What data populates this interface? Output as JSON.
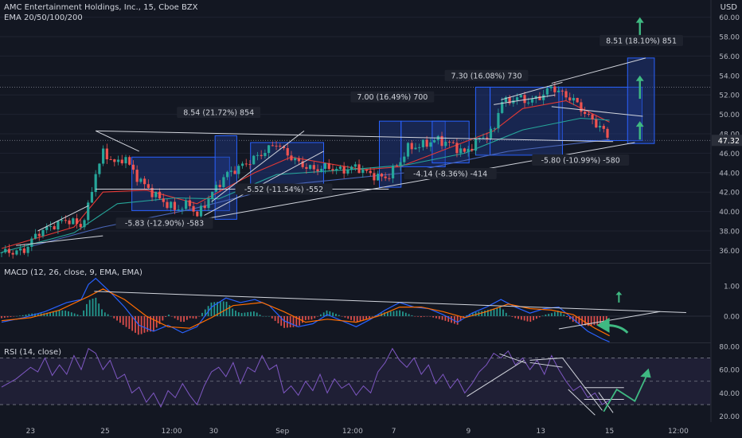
{
  "header": {
    "title": "AMC Entertainment Holdings, Inc., 15, Cboe BZX",
    "ema": "EMA 20/50/100/200",
    "macd": "MACD (12, 26, close, 9, EMA, EMA)",
    "rsi": "RSI (14, close)",
    "currency": "USD"
  },
  "colors": {
    "background": "#131722",
    "up": "#26a69a",
    "down": "#ef5350",
    "box_fill": "#1e3a8a",
    "box_edge": "#2962ff",
    "arrow": "#3fb982",
    "rsi_line": "#7e57c2",
    "macd_line": "#2962ff",
    "signal_line": "#ff6d00"
  },
  "chart_data": [
    {
      "type": "line",
      "name": "price",
      "x_ticks": [
        "23",
        "25",
        "12:00",
        "30",
        "Sep",
        "12:00",
        "7",
        "9",
        "13",
        "15",
        "12:00"
      ],
      "y_ticks": [
        "60.00",
        "58.00",
        "56.00",
        "54.00",
        "52.00",
        "50.00",
        "48.00",
        "46.00",
        "44.00",
        "42.00",
        "40.00",
        "38.00",
        "36.00"
      ],
      "ylim": [
        35,
        61
      ],
      "xlim": [
        0,
        100
      ],
      "price_path": [
        [
          0,
          35.8
        ],
        [
          3,
          35.9
        ],
        [
          5,
          37.8
        ],
        [
          7,
          38.5
        ],
        [
          9,
          39.2
        ],
        [
          11,
          38.5
        ],
        [
          12,
          40.5
        ],
        [
          13,
          44.0
        ],
        [
          14,
          46.0
        ],
        [
          15,
          45.5
        ],
        [
          16,
          44.8
        ],
        [
          17,
          45.8
        ],
        [
          18,
          44.2
        ],
        [
          20,
          42.5
        ],
        [
          22,
          41.2
        ],
        [
          24,
          40.2
        ],
        [
          26,
          40.8
        ],
        [
          27,
          39.5
        ],
        [
          29,
          41.8
        ],
        [
          31,
          43.8
        ],
        [
          33,
          44.6
        ],
        [
          35,
          45.5
        ],
        [
          37,
          46.5
        ],
        [
          38,
          47.1
        ],
        [
          39,
          46.2
        ],
        [
          41,
          45.0
        ],
        [
          43,
          44.3
        ],
        [
          45,
          44.6
        ],
        [
          47,
          44.2
        ],
        [
          49,
          44.6
        ],
        [
          51,
          43.8
        ],
        [
          53,
          43.4
        ],
        [
          55,
          45.0
        ],
        [
          56,
          46.5
        ],
        [
          58,
          46.8
        ],
        [
          60,
          47.4
        ],
        [
          62,
          47.0
        ],
        [
          64,
          46.0
        ],
        [
          66,
          47.5
        ],
        [
          68,
          48.2
        ],
        [
          69,
          51.5
        ],
        [
          70,
          51.2
        ],
        [
          71,
          51.8
        ],
        [
          73,
          51.3
        ],
        [
          75,
          52.1
        ],
        [
          76,
          52.9
        ],
        [
          77,
          52.3
        ],
        [
          79,
          51.5
        ],
        [
          81,
          49.8
        ],
        [
          83,
          48.5
        ],
        [
          84,
          47.3
        ]
      ],
      "ema_series": [
        {
          "color": "#e53935",
          "values": [
            [
              0,
              36.2
            ],
            [
              10,
              38.4
            ],
            [
              14,
              42.0
            ],
            [
              20,
              42.2
            ],
            [
              27,
              40.8
            ],
            [
              35,
              44.0
            ],
            [
              40,
              45.6
            ],
            [
              50,
              44.3
            ],
            [
              55,
              44.6
            ],
            [
              62,
              46.6
            ],
            [
              68,
              48.3
            ],
            [
              72,
              50.6
            ],
            [
              78,
              51.4
            ],
            [
              84,
              49.2
            ]
          ]
        },
        {
          "color": "#26a69a",
          "values": [
            [
              0,
              35.8
            ],
            [
              10,
              37.8
            ],
            [
              16,
              40.8
            ],
            [
              24,
              41.4
            ],
            [
              30,
              41.3
            ],
            [
              38,
              43.8
            ],
            [
              48,
              44.3
            ],
            [
              56,
              44.8
            ],
            [
              64,
              46.0
            ],
            [
              72,
              48.4
            ],
            [
              80,
              49.6
            ],
            [
              84,
              49.4
            ]
          ]
        },
        {
          "color": "#4a66b8",
          "values": [
            [
              4,
              36.4
            ],
            [
              14,
              38.4
            ],
            [
              26,
              40.2
            ],
            [
              40,
              42.8
            ],
            [
              56,
              44.0
            ],
            [
              70,
              46.2
            ],
            [
              84,
              47.4
            ]
          ]
        }
      ],
      "last_price": "47.32",
      "measure_labels": [
        "8.54 (21.72%) 854",
        "-5.83 (-12.90%) -583",
        "-5.52 (-11.54%) -552",
        "7.00 (16.49%) 700",
        "-4.14 (-8.36%) -414",
        "7.30 (16.08%) 730",
        "-5.80 (-10.99%) -580",
        "8.51 (18.10%) 851"
      ]
    },
    {
      "type": "line",
      "name": "MACD",
      "y_ticks": [
        "1.00",
        "0.00"
      ],
      "ylim": [
        -1.15,
        1.35
      ],
      "macd": [
        [
          0,
          -0.2
        ],
        [
          3,
          -0.05
        ],
        [
          6,
          0.15
        ],
        [
          9,
          0.45
        ],
        [
          11,
          0.55
        ],
        [
          12,
          1.05
        ],
        [
          13,
          1.25
        ],
        [
          15,
          0.8
        ],
        [
          17,
          0.3
        ],
        [
          19,
          -0.3
        ],
        [
          21,
          -0.5
        ],
        [
          23,
          -0.3
        ],
        [
          25,
          -0.55
        ],
        [
          27,
          -0.35
        ],
        [
          29,
          0.3
        ],
        [
          31,
          0.6
        ],
        [
          33,
          0.45
        ],
        [
          35,
          0.55
        ],
        [
          37,
          0.35
        ],
        [
          39,
          -0.15
        ],
        [
          41,
          -0.35
        ],
        [
          43,
          -0.25
        ],
        [
          45,
          0.05
        ],
        [
          47,
          -0.15
        ],
        [
          49,
          -0.35
        ],
        [
          51,
          -0.1
        ],
        [
          53,
          0.2
        ],
        [
          55,
          0.45
        ],
        [
          57,
          0.3
        ],
        [
          59,
          0.25
        ],
        [
          61,
          0.05
        ],
        [
          63,
          -0.2
        ],
        [
          65,
          0.1
        ],
        [
          67,
          0.3
        ],
        [
          69,
          0.55
        ],
        [
          71,
          0.3
        ],
        [
          73,
          0.1
        ],
        [
          75,
          0.25
        ],
        [
          77,
          0.3
        ],
        [
          79,
          -0.1
        ],
        [
          81,
          -0.5
        ],
        [
          83,
          -0.75
        ],
        [
          84,
          -0.85
        ]
      ],
      "signal": [
        [
          0,
          -0.15
        ],
        [
          4,
          -0.05
        ],
        [
          8,
          0.2
        ],
        [
          12,
          0.65
        ],
        [
          14,
          0.9
        ],
        [
          17,
          0.55
        ],
        [
          20,
          0.0
        ],
        [
          23,
          -0.35
        ],
        [
          26,
          -0.4
        ],
        [
          29,
          -0.05
        ],
        [
          32,
          0.35
        ],
        [
          36,
          0.45
        ],
        [
          39,
          0.15
        ],
        [
          42,
          -0.2
        ],
        [
          45,
          -0.1
        ],
        [
          49,
          -0.2
        ],
        [
          52,
          0.0
        ],
        [
          55,
          0.3
        ],
        [
          58,
          0.3
        ],
        [
          61,
          0.15
        ],
        [
          64,
          -0.05
        ],
        [
          67,
          0.15
        ],
        [
          70,
          0.4
        ],
        [
          73,
          0.25
        ],
        [
          76,
          0.2
        ],
        [
          79,
          0.05
        ],
        [
          82,
          -0.4
        ],
        [
          84,
          -0.65
        ]
      ]
    },
    {
      "type": "line",
      "name": "RSI",
      "y_ticks": [
        "80.00",
        "60.00",
        "40.00",
        "20.00"
      ],
      "ylim": [
        15,
        82
      ],
      "rsi": [
        [
          0,
          45
        ],
        [
          2,
          52
        ],
        [
          4,
          62
        ],
        [
          5,
          58
        ],
        [
          6,
          70
        ],
        [
          7,
          55
        ],
        [
          8,
          64
        ],
        [
          9,
          56
        ],
        [
          10,
          72
        ],
        [
          11,
          60
        ],
        [
          12,
          78
        ],
        [
          13,
          74
        ],
        [
          14,
          60
        ],
        [
          15,
          68
        ],
        [
          16,
          52
        ],
        [
          17,
          56
        ],
        [
          18,
          40
        ],
        [
          19,
          45
        ],
        [
          20,
          32
        ],
        [
          21,
          40
        ],
        [
          22,
          28
        ],
        [
          23,
          42
        ],
        [
          24,
          36
        ],
        [
          25,
          48
        ],
        [
          26,
          38
        ],
        [
          27,
          30
        ],
        [
          28,
          46
        ],
        [
          29,
          58
        ],
        [
          30,
          62
        ],
        [
          31,
          54
        ],
        [
          32,
          66
        ],
        [
          33,
          48
        ],
        [
          34,
          62
        ],
        [
          35,
          58
        ],
        [
          36,
          72
        ],
        [
          37,
          60
        ],
        [
          38,
          64
        ],
        [
          39,
          40
        ],
        [
          40,
          46
        ],
        [
          41,
          38
        ],
        [
          42,
          50
        ],
        [
          43,
          42
        ],
        [
          44,
          56
        ],
        [
          45,
          40
        ],
        [
          46,
          52
        ],
        [
          47,
          44
        ],
        [
          48,
          48
        ],
        [
          49,
          38
        ],
        [
          50,
          46
        ],
        [
          51,
          40
        ],
        [
          52,
          58
        ],
        [
          53,
          66
        ],
        [
          54,
          78
        ],
        [
          55,
          68
        ],
        [
          56,
          62
        ],
        [
          57,
          70
        ],
        [
          58,
          56
        ],
        [
          59,
          64
        ],
        [
          60,
          48
        ],
        [
          61,
          56
        ],
        [
          62,
          44
        ],
        [
          63,
          52
        ],
        [
          64,
          40
        ],
        [
          65,
          48
        ],
        [
          66,
          58
        ],
        [
          67,
          64
        ],
        [
          68,
          74
        ],
        [
          69,
          70
        ],
        [
          70,
          76
        ],
        [
          71,
          64
        ],
        [
          72,
          70
        ],
        [
          73,
          60
        ],
        [
          74,
          68
        ],
        [
          75,
          56
        ],
        [
          76,
          72
        ],
        [
          77,
          60
        ],
        [
          78,
          50
        ],
        [
          79,
          42
        ],
        [
          80,
          46
        ],
        [
          81,
          36
        ],
        [
          82,
          40
        ],
        [
          83,
          30
        ],
        [
          84,
          34
        ]
      ]
    }
  ]
}
